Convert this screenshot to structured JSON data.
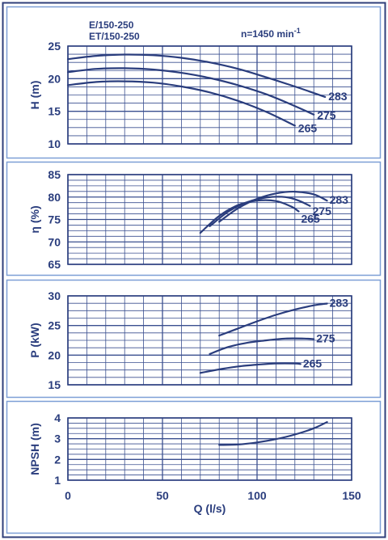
{
  "header": {
    "model_line_1": "E/150-250",
    "model_line_2": "ET/150-250",
    "speed_text": "n=1450 min",
    "speed_exp": "-1"
  },
  "colors": {
    "ink": "#2a3d7d",
    "grid": "#3a4f8f",
    "panel_border": "#7d9fd6",
    "frame_border": "#2f3f7a"
  },
  "chart_data": [
    {
      "type": "line",
      "ylabel": "H (m)",
      "ylim": [
        10,
        25
      ],
      "yticks": [
        "10",
        "15",
        "20",
        "25"
      ],
      "xlim": [
        0,
        150
      ],
      "grid": true,
      "series": [
        {
          "name": "283",
          "x": [
            0,
            15,
            30,
            45,
            60,
            75,
            90,
            105,
            120,
            136
          ],
          "y": [
            23.0,
            23.5,
            23.7,
            23.6,
            23.2,
            22.5,
            21.5,
            20.2,
            18.8,
            17.2
          ]
        },
        {
          "name": "275",
          "x": [
            0,
            15,
            30,
            45,
            60,
            75,
            90,
            105,
            120,
            130
          ],
          "y": [
            21.0,
            21.5,
            21.6,
            21.4,
            20.9,
            20.1,
            19.0,
            17.6,
            15.8,
            14.5
          ]
        },
        {
          "name": "265",
          "x": [
            0,
            15,
            30,
            45,
            60,
            75,
            90,
            105,
            120
          ],
          "y": [
            19.0,
            19.5,
            19.6,
            19.4,
            18.8,
            17.9,
            16.6,
            14.9,
            12.8
          ]
        }
      ]
    },
    {
      "type": "line",
      "ylabel": "η (%)",
      "ylim": [
        65,
        85
      ],
      "yticks": [
        "65",
        "70",
        "75",
        "80",
        "85"
      ],
      "xlim": [
        0,
        150
      ],
      "grid": true,
      "series": [
        {
          "name": "283",
          "x": [
            80,
            90,
            100,
            110,
            120,
            130,
            137
          ],
          "y": [
            74.5,
            77.5,
            79.6,
            80.8,
            81.2,
            80.6,
            79.2
          ]
        },
        {
          "name": "275",
          "x": [
            75,
            85,
            95,
            105,
            115,
            122,
            128
          ],
          "y": [
            73.5,
            76.8,
            78.9,
            79.9,
            80.0,
            79.2,
            78.0
          ]
        },
        {
          "name": "265",
          "x": [
            70,
            80,
            90,
            100,
            110,
            118,
            122
          ],
          "y": [
            72.0,
            75.8,
            78.2,
            79.2,
            79.1,
            77.9,
            76.8
          ]
        }
      ]
    },
    {
      "type": "line",
      "ylabel": "P (kW)",
      "ylim": [
        15,
        30
      ],
      "yticks": [
        "15",
        "20",
        "25",
        "30"
      ],
      "xlim": [
        0,
        150
      ],
      "grid": true,
      "series": [
        {
          "name": "283",
          "x": [
            80,
            90,
            100,
            110,
            120,
            130,
            137
          ],
          "y": [
            23.3,
            24.5,
            25.7,
            26.8,
            27.7,
            28.4,
            28.7
          ]
        },
        {
          "name": "275",
          "x": [
            75,
            85,
            95,
            105,
            115,
            125,
            130
          ],
          "y": [
            20.2,
            21.4,
            22.1,
            22.5,
            22.8,
            22.8,
            22.7
          ]
        },
        {
          "name": "265",
          "x": [
            70,
            80,
            90,
            100,
            110,
            120,
            123
          ],
          "y": [
            17.0,
            17.6,
            18.1,
            18.4,
            18.6,
            18.6,
            18.5
          ]
        }
      ]
    },
    {
      "type": "line",
      "ylabel": "NPSH (m)",
      "ylim": [
        1,
        4
      ],
      "yticks": [
        "1",
        "2",
        "3",
        "4"
      ],
      "xlim": [
        0,
        150
      ],
      "xticks": [
        "0",
        "50",
        "100",
        "150"
      ],
      "xlabel": "Q (l/s)",
      "grid": true,
      "series": [
        {
          "x": [
            80,
            90,
            100,
            110,
            120,
            130,
            137
          ],
          "y": [
            2.7,
            2.72,
            2.82,
            2.98,
            3.2,
            3.5,
            3.8
          ]
        }
      ]
    }
  ]
}
